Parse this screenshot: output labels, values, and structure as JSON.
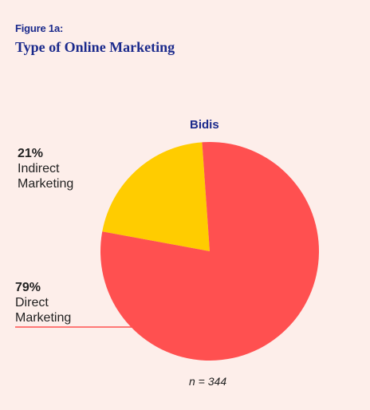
{
  "figure_label": "Figure  1a:",
  "figure_title": "Type of Online Marketing",
  "sample_note": "n = 344",
  "chart_data": {
    "type": "pie",
    "title": "Bidis",
    "slices": [
      {
        "pct_label": "21%",
        "label": "Indirect\nMarketing",
        "value": 21,
        "color": "#ffcc00"
      },
      {
        "pct_label": "79%",
        "label": "Direct\nMarketing",
        "value": 79,
        "color": "#ff5050"
      }
    ]
  }
}
